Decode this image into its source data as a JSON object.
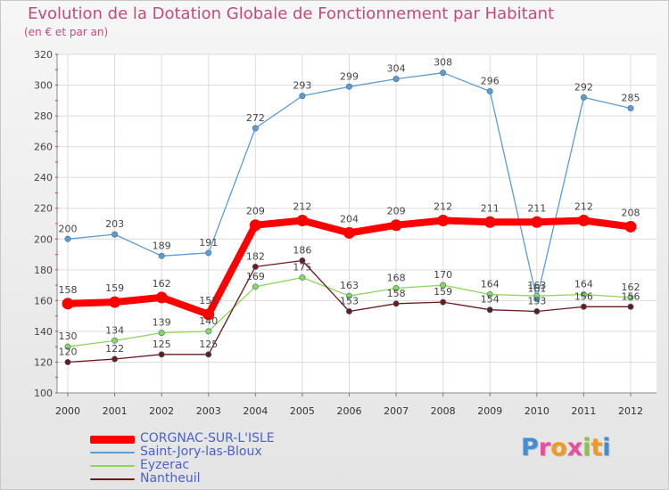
{
  "title": "Evolution de la Dotation Globale de Fonctionnement par Habitant",
  "subtitle": "(en € et par an)",
  "logo": {
    "letters": [
      "P",
      "r",
      "o",
      "x",
      "i",
      "t",
      "i"
    ],
    "colors": [
      "#3f8fd2",
      "#e84f9c",
      "#f39a1e",
      "#e84f9c",
      "#8ac43f",
      "#f39a1e",
      "#3f8fd2"
    ]
  },
  "chart_data": {
    "type": "line",
    "title": "Evolution de la Dotation Globale de Fonctionnement par Habitant",
    "subtitle": "(en € et par an)",
    "xlabel": "",
    "ylabel": "",
    "ylim": [
      100,
      320
    ],
    "yticks": [
      100,
      120,
      140,
      160,
      180,
      200,
      220,
      240,
      260,
      280,
      300,
      320
    ],
    "grid": true,
    "legend_position": "bottom-left",
    "x": [
      "2000",
      "2001",
      "2002",
      "2003",
      "2004",
      "2005",
      "2006",
      "2007",
      "2008",
      "2009",
      "2010",
      "2011",
      "2012"
    ],
    "series": [
      {
        "name": "CORGNAC-SUR-L'ISLE",
        "color": "#ff0000",
        "values": [
          158,
          159,
          162,
          151,
          209,
          212,
          204,
          209,
          212,
          211,
          211,
          212,
          208
        ]
      },
      {
        "name": "Saint-Jory-las-Bloux",
        "color": "#5d9bd1",
        "values": [
          200,
          203,
          189,
          191,
          272,
          293,
          299,
          304,
          308,
          296,
          161,
          292,
          285
        ]
      },
      {
        "name": "Eyzerac",
        "color": "#8cd65a",
        "values": [
          130,
          134,
          139,
          140,
          169,
          175,
          163,
          168,
          170,
          164,
          163,
          164,
          162
        ]
      },
      {
        "name": "Nantheuil",
        "color": "#6b1a1a",
        "values": [
          120,
          122,
          125,
          125,
          182,
          186,
          153,
          158,
          159,
          154,
          153,
          156,
          156
        ]
      }
    ]
  }
}
